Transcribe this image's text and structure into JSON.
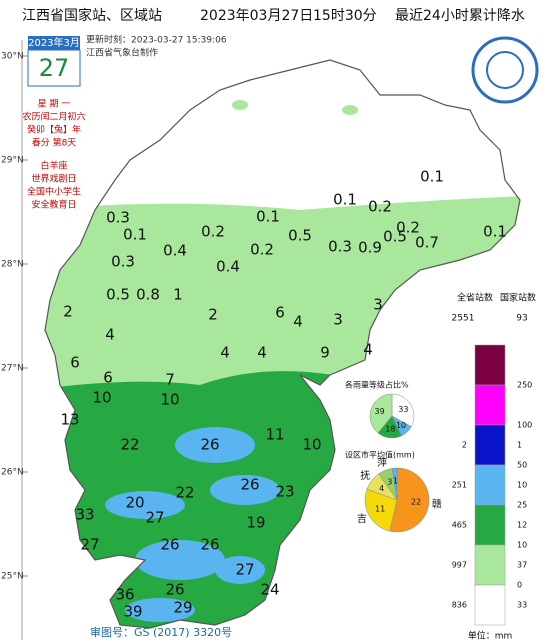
{
  "header": {
    "title": "江西省国家站、区域站",
    "date": "2023年03月27日",
    "time": "15时30分",
    "subject": "最近24小时累计降水"
  },
  "calendar": {
    "month": "2023年3月",
    "day": "27",
    "lines": [
      "星 期 一",
      "农历闰二月初六",
      "癸卯【兔】年",
      "春分 第8天",
      "白羊座",
      "世界戏剧日",
      "全国中小学生",
      "安全教育日"
    ]
  },
  "update": "更新时刻：2023-03-27 15:39:06",
  "maker": "江西省气象台制作",
  "lat_labels": [
    "30°N",
    "29°N",
    "28°N",
    "27°N",
    "26°N",
    "25°N"
  ],
  "station_values": [
    0.3,
    0.1,
    0.4,
    0.2,
    0.1,
    0.2,
    0.4,
    0.5,
    0.3,
    0.9,
    0.5,
    0.2,
    0.1,
    0.1,
    0.7,
    0.1,
    0.2,
    0.3,
    0.8,
    0.5,
    2,
    1,
    2,
    6,
    4,
    3,
    3,
    4,
    6,
    6,
    4,
    4,
    9,
    4,
    7,
    10,
    10,
    13,
    22,
    26,
    11,
    10,
    22,
    26,
    23,
    20,
    33,
    27,
    26,
    19,
    27,
    26,
    27,
    36,
    26,
    24,
    39,
    29
  ],
  "legend": {
    "all_header": "全省站数",
    "national_header": "国家站数",
    "all_total": "2551",
    "national_total": "93",
    "levels": [
      250,
      100,
      50,
      25,
      10,
      0
    ],
    "colors": [
      "#7b0042",
      "#ff00ff",
      "#0a14c8",
      "#5ab4f0",
      "#26a843",
      "#a9e89c",
      "#ffffff"
    ],
    "all_counts": [
      null,
      null,
      "2",
      "251",
      "465",
      "997",
      "836"
    ],
    "national_counts": [
      null,
      null,
      "1",
      "10",
      "12",
      "37",
      "33"
    ],
    "unit": "单位：mm"
  },
  "pie_levels": {
    "title": "各雨量等级占比%",
    "values": [
      33,
      10,
      18,
      39
    ],
    "colors": [
      "#ffffff",
      "#5ab4f0",
      "#26a843",
      "#a9e89c"
    ]
  },
  "pie_cities": {
    "title": "设区市平均值(mm)",
    "categories": [
      "赣",
      "吉",
      "抚",
      "萍",
      null
    ],
    "values": [
      22,
      11,
      4,
      3,
      1
    ],
    "colors": [
      "#f7941d",
      "#f5d90a",
      "#e8e060",
      "#9ad06a",
      "#5ab4f0"
    ]
  },
  "approval": "审图号：GS (2017) 3320号"
}
